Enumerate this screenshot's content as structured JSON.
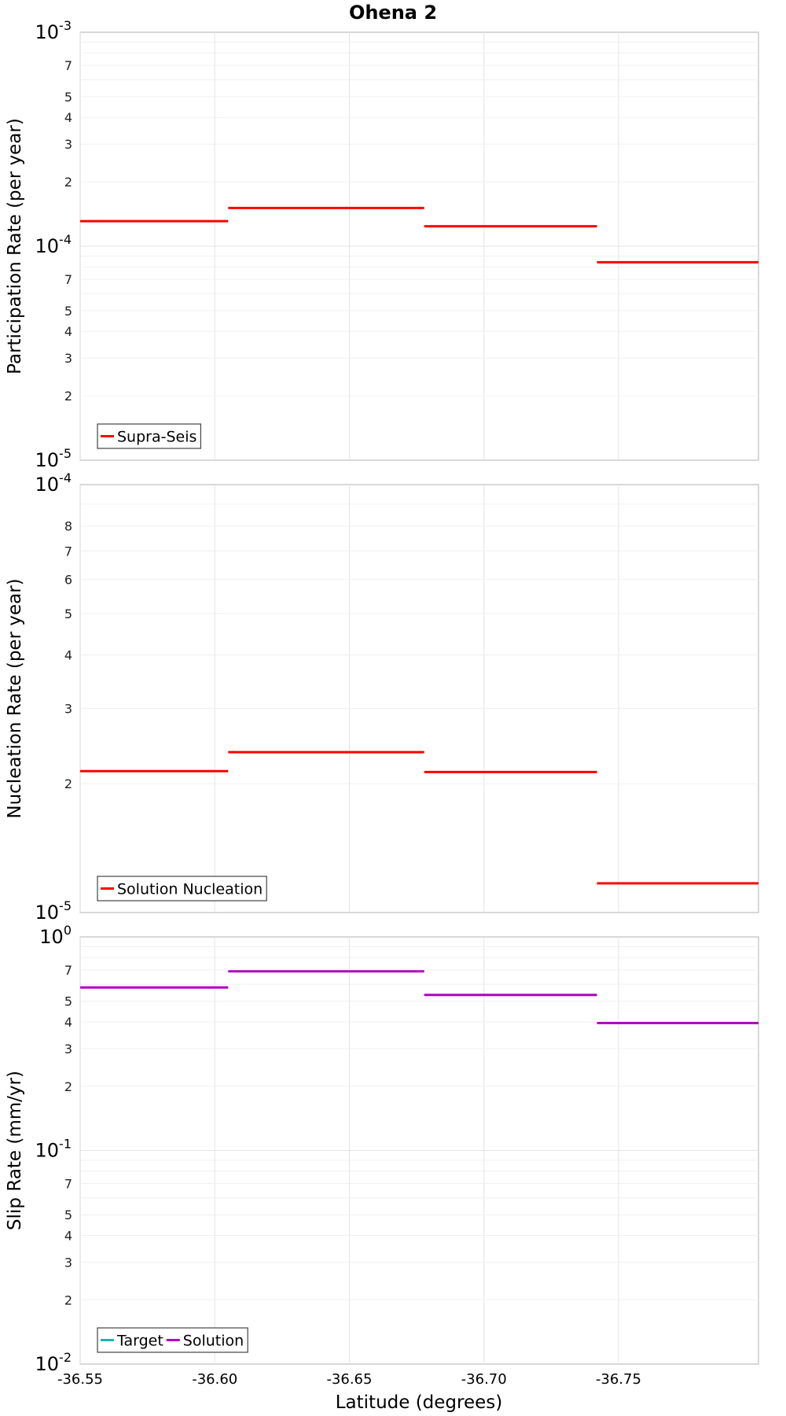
{
  "chart_data": {
    "type": "line",
    "title": "Ohena 2",
    "xlabel": "Latitude (degrees)",
    "x_ticks": [
      "-36.55",
      "-36.60",
      "-36.65",
      "-36.70",
      "-36.75"
    ],
    "xlim": [
      -36.55,
      -36.802
    ],
    "segments_x": [
      [
        -36.55,
        -36.605
      ],
      [
        -36.605,
        -36.6778
      ],
      [
        -36.6778,
        -36.742
      ],
      [
        -36.742,
        -36.802
      ]
    ],
    "panels": [
      {
        "id": "participation",
        "ylabel": "Participation Rate (per year)",
        "yscale": "log",
        "ylim": [
          1e-05,
          0.001
        ],
        "major_ticks": [
          {
            "base": "10",
            "exp": "-3"
          },
          {
            "base": "10",
            "exp": "-4"
          },
          {
            "base": "10",
            "exp": "-5"
          }
        ],
        "minor_tick_labels": [
          "7",
          "5",
          "4",
          "3",
          "2",
          "7",
          "5",
          "4",
          "3",
          "2"
        ],
        "series": [
          {
            "name": "Supra-Seis",
            "color": "#ff0000",
            "values": [
              0.000131,
              0.000151,
              0.000124,
              8.42e-05
            ]
          }
        ],
        "legend": [
          "Supra-Seis"
        ]
      },
      {
        "id": "nucleation",
        "ylabel": "Nucleation Rate (per year)",
        "yscale": "log",
        "ylim": [
          1e-05,
          0.0001
        ],
        "major_ticks": [
          {
            "base": "10",
            "exp": "-4"
          },
          {
            "base": "10",
            "exp": "-5"
          }
        ],
        "minor_tick_labels": [
          "8",
          "7",
          "6",
          "5",
          "4",
          "3",
          "2"
        ],
        "series": [
          {
            "name": "Solution Nucleation",
            "color": "#ff0000",
            "values": [
              2.14e-05,
              2.37e-05,
              2.13e-05,
              1.17e-05
            ]
          }
        ],
        "legend": [
          "Solution Nucleation"
        ]
      },
      {
        "id": "slip",
        "ylabel": "Slip Rate (mm/yr)",
        "yscale": "log",
        "ylim": [
          0.01,
          1
        ],
        "major_ticks": [
          {
            "base": "10",
            "exp": "0"
          },
          {
            "base": "10",
            "exp": "-1"
          },
          {
            "base": "10",
            "exp": "-2"
          }
        ],
        "minor_tick_labels": [
          "7",
          "5",
          "4",
          "3",
          "2",
          "7",
          "5",
          "4",
          "3",
          "2"
        ],
        "series": [
          {
            "name": "Target",
            "color": "#20b2aa",
            "values": []
          },
          {
            "name": "Solution",
            "color": "#b000c0",
            "values": [
              0.58,
              0.69,
              0.535,
              0.395
            ]
          }
        ],
        "legend": [
          "Target",
          "Solution"
        ]
      }
    ]
  }
}
